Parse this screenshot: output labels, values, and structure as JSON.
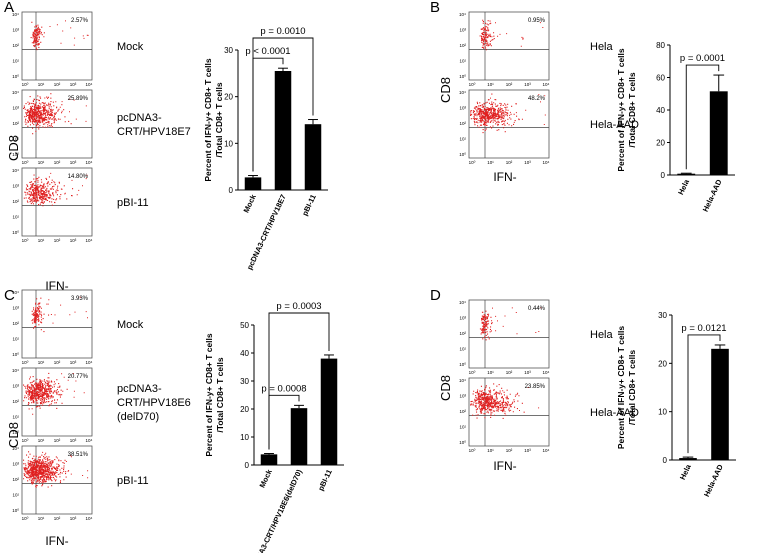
{
  "panels": [
    {
      "letter": "A",
      "flow": {
        "ylabel": "CD8",
        "xlabel": "IFN-",
        "plots": [
          {
            "percent": "2.57%",
            "label_lines": [
              "Mock"
            ],
            "density": "low"
          },
          {
            "percent": "25.89%",
            "label_lines": [
              "pcDNA3-",
              "CRT/HPV18E7"
            ],
            "density": "high"
          },
          {
            "percent": "14.80%",
            "label_lines": [
              "pBI-11"
            ],
            "density": "medium"
          }
        ],
        "x_ticks": [
          "10⁰",
          "10¹",
          "10²",
          "10³",
          "10⁴"
        ],
        "y_ticks": [
          "10⁰",
          "10¹",
          "10²",
          "10³",
          "10⁴"
        ]
      }
    },
    {
      "letter": "B",
      "flow": {
        "ylabel": "CD8",
        "xlabel": "IFN-",
        "plots": [
          {
            "percent": "0.95%",
            "label_lines": [
              "Hela"
            ],
            "density": "low"
          },
          {
            "percent": "48.2%",
            "label_lines": [
              "Hela-AAD"
            ],
            "density": "high"
          }
        ],
        "x_ticks": [
          "10⁰",
          "10¹",
          "10²",
          "10³",
          "10⁴"
        ],
        "y_ticks": [
          "10⁰",
          "10¹",
          "10²",
          "10³",
          "10⁴"
        ]
      }
    },
    {
      "letter": "C",
      "flow": {
        "ylabel": "CD8",
        "xlabel": "IFN-",
        "plots": [
          {
            "percent": "3.93%",
            "label_lines": [
              "Mock"
            ],
            "density": "low"
          },
          {
            "percent": "20.77%",
            "label_lines": [
              "pcDNA3-",
              "CRT/HPV18E6",
              "(delD70)"
            ],
            "density": "high"
          },
          {
            "percent": "38.51%",
            "label_lines": [
              "pBI-11"
            ],
            "density": "veryhigh"
          }
        ],
        "x_ticks": [
          "10⁰",
          "10¹",
          "10²",
          "10³",
          "10⁴"
        ],
        "y_ticks": [
          "10⁰",
          "10¹",
          "10²",
          "10³",
          "10⁴"
        ]
      }
    },
    {
      "letter": "D",
      "flow": {
        "ylabel": "CD8",
        "xlabel": "IFN-",
        "plots": [
          {
            "percent": "0.44%",
            "label_lines": [
              "Hela"
            ],
            "density": "low"
          },
          {
            "percent": "23.85%",
            "label_lines": [
              "Hela-AAD"
            ],
            "density": "high"
          }
        ],
        "x_ticks": [
          "10⁰",
          "10¹",
          "10²",
          "10³",
          "10⁴"
        ],
        "y_ticks": [
          "10⁰",
          "10¹",
          "10²",
          "10³",
          "10⁴"
        ]
      }
    }
  ],
  "chart_data": [
    {
      "panel": "A",
      "type": "bar",
      "categories": [
        "Mock",
        "pcDNA3-CRT/HPV18E7",
        "pBI-11"
      ],
      "values": [
        2.7,
        25.5,
        14.1
      ],
      "errors": [
        0.4,
        0.6,
        1.0
      ],
      "ylabel_lines": [
        "Percent of IFN-y+ CD8+ T cells",
        "/Total CD8+ T cells"
      ],
      "ylim": [
        0,
        30
      ],
      "y_ticks": [
        0,
        10,
        20,
        30
      ],
      "comparisons": [
        {
          "from": 0,
          "to": 1,
          "text": "p < 0.0001"
        },
        {
          "from": 0,
          "to": 2,
          "text": "p = 0.0010"
        }
      ]
    },
    {
      "panel": "B",
      "type": "bar",
      "categories": [
        "Hela",
        "Hela-AAD"
      ],
      "values": [
        0.8,
        51.5
      ],
      "errors": [
        0.3,
        10.0
      ],
      "ylabel_lines": [
        "Percent of IFN-y+ CD8+ T cells",
        "/Total CD8+ T cells"
      ],
      "ylim": [
        0,
        80
      ],
      "y_ticks": [
        0,
        20,
        40,
        60,
        80
      ],
      "comparisons": [
        {
          "from": 0,
          "to": 1,
          "text": "p = 0.0001"
        }
      ]
    },
    {
      "panel": "C",
      "type": "bar",
      "categories": [
        "Mock",
        "pcDNA3-CRT/HPV18E6(delD70)",
        "pBI-11"
      ],
      "values": [
        3.8,
        20.3,
        38.0
      ],
      "errors": [
        0.3,
        1.0,
        1.3
      ],
      "ylabel_lines": [
        "Percent of IFN-y+ CD8+ T cells",
        "/Total CD8+ T cells"
      ],
      "ylim": [
        0,
        50
      ],
      "y_ticks": [
        0,
        10,
        20,
        30,
        40,
        50
      ],
      "comparisons": [
        {
          "from": 0,
          "to": 1,
          "text": "p = 0.0008"
        },
        {
          "from": 0,
          "to": 2,
          "text": "p = 0.0003"
        }
      ]
    },
    {
      "panel": "D",
      "type": "bar",
      "categories": [
        "Hela",
        "Hela-AAD"
      ],
      "values": [
        0.4,
        23.0
      ],
      "errors": [
        0.2,
        0.8
      ],
      "ylabel_lines": [
        "Percent of IFN-y+ CD8+ T cells",
        "/Total CD8+ T cells"
      ],
      "ylim": [
        0,
        30
      ],
      "y_ticks": [
        0,
        10,
        20,
        30
      ],
      "comparisons": [
        {
          "from": 0,
          "to": 1,
          "text": "p = 0.0121"
        }
      ]
    }
  ]
}
